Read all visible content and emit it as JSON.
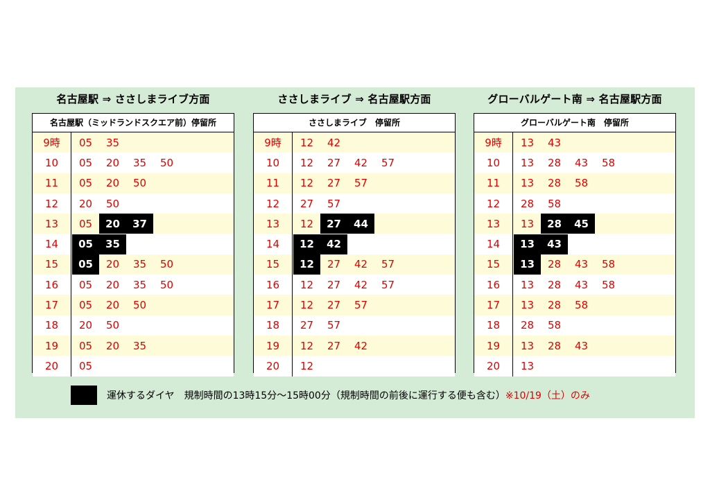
{
  "colors": {
    "background": "#d4ebd6",
    "highlight_row": "#fefbd8",
    "time_text": "#e00000",
    "suspended": "#000000"
  },
  "blocks": [
    {
      "title": "名古屋駅 ⇒ ささしまライブ方面",
      "stop": "名古屋駅（ミッドランドスクエア前）停留所",
      "rows": [
        {
          "hour": "9時",
          "mins": [
            {
              "m": "05",
              "s": false
            },
            {
              "m": "35",
              "s": false
            }
          ]
        },
        {
          "hour": "10",
          "mins": [
            {
              "m": "05",
              "s": false
            },
            {
              "m": "20",
              "s": false
            },
            {
              "m": "35",
              "s": false
            },
            {
              "m": "50",
              "s": false
            }
          ]
        },
        {
          "hour": "11",
          "mins": [
            {
              "m": "05",
              "s": false
            },
            {
              "m": "20",
              "s": false
            },
            {
              "m": "50",
              "s": false
            }
          ]
        },
        {
          "hour": "12",
          "mins": [
            {
              "m": "20",
              "s": false
            },
            {
              "m": "50",
              "s": false
            }
          ]
        },
        {
          "hour": "13",
          "mins": [
            {
              "m": "05",
              "s": false
            },
            {
              "m": "20",
              "s": true
            },
            {
              "m": "37",
              "s": true
            }
          ]
        },
        {
          "hour": "14",
          "mins": [
            {
              "m": "05",
              "s": true
            },
            {
              "m": "35",
              "s": true
            }
          ]
        },
        {
          "hour": "15",
          "mins": [
            {
              "m": "05",
              "s": true
            },
            {
              "m": "20",
              "s": false
            },
            {
              "m": "35",
              "s": false
            },
            {
              "m": "50",
              "s": false
            }
          ]
        },
        {
          "hour": "16",
          "mins": [
            {
              "m": "05",
              "s": false
            },
            {
              "m": "20",
              "s": false
            },
            {
              "m": "35",
              "s": false
            },
            {
              "m": "50",
              "s": false
            }
          ]
        },
        {
          "hour": "17",
          "mins": [
            {
              "m": "05",
              "s": false
            },
            {
              "m": "20",
              "s": false
            },
            {
              "m": "50",
              "s": false
            }
          ]
        },
        {
          "hour": "18",
          "mins": [
            {
              "m": "20",
              "s": false
            },
            {
              "m": "50",
              "s": false
            }
          ]
        },
        {
          "hour": "19",
          "mins": [
            {
              "m": "05",
              "s": false
            },
            {
              "m": "20",
              "s": false
            },
            {
              "m": "35",
              "s": false
            }
          ]
        },
        {
          "hour": "20",
          "mins": [
            {
              "m": "05",
              "s": false
            }
          ]
        }
      ]
    },
    {
      "title": "ささしまライブ ⇒ 名古屋駅方面",
      "stop": "ささしまライブ　停留所",
      "rows": [
        {
          "hour": "9時",
          "mins": [
            {
              "m": "12",
              "s": false
            },
            {
              "m": "42",
              "s": false
            }
          ]
        },
        {
          "hour": "10",
          "mins": [
            {
              "m": "12",
              "s": false
            },
            {
              "m": "27",
              "s": false
            },
            {
              "m": "42",
              "s": false
            },
            {
              "m": "57",
              "s": false
            }
          ]
        },
        {
          "hour": "11",
          "mins": [
            {
              "m": "12",
              "s": false
            },
            {
              "m": "27",
              "s": false
            },
            {
              "m": "57",
              "s": false
            }
          ]
        },
        {
          "hour": "12",
          "mins": [
            {
              "m": "27",
              "s": false
            },
            {
              "m": "57",
              "s": false
            }
          ]
        },
        {
          "hour": "13",
          "mins": [
            {
              "m": "12",
              "s": false
            },
            {
              "m": "27",
              "s": true
            },
            {
              "m": "44",
              "s": true
            }
          ]
        },
        {
          "hour": "14",
          "mins": [
            {
              "m": "12",
              "s": true
            },
            {
              "m": "42",
              "s": true
            }
          ]
        },
        {
          "hour": "15",
          "mins": [
            {
              "m": "12",
              "s": true
            },
            {
              "m": "27",
              "s": false
            },
            {
              "m": "42",
              "s": false
            },
            {
              "m": "57",
              "s": false
            }
          ]
        },
        {
          "hour": "16",
          "mins": [
            {
              "m": "12",
              "s": false
            },
            {
              "m": "27",
              "s": false
            },
            {
              "m": "42",
              "s": false
            },
            {
              "m": "57",
              "s": false
            }
          ]
        },
        {
          "hour": "17",
          "mins": [
            {
              "m": "12",
              "s": false
            },
            {
              "m": "27",
              "s": false
            },
            {
              "m": "57",
              "s": false
            }
          ]
        },
        {
          "hour": "18",
          "mins": [
            {
              "m": "27",
              "s": false
            },
            {
              "m": "57",
              "s": false
            }
          ]
        },
        {
          "hour": "19",
          "mins": [
            {
              "m": "12",
              "s": false
            },
            {
              "m": "27",
              "s": false
            },
            {
              "m": "42",
              "s": false
            }
          ]
        },
        {
          "hour": "20",
          "mins": [
            {
              "m": "12",
              "s": false
            }
          ]
        }
      ]
    },
    {
      "title": "グローバルゲート南 ⇒ 名古屋駅方面",
      "stop": "グローバルゲート南　停留所",
      "rows": [
        {
          "hour": "9時",
          "mins": [
            {
              "m": "13",
              "s": false
            },
            {
              "m": "43",
              "s": false
            }
          ]
        },
        {
          "hour": "10",
          "mins": [
            {
              "m": "13",
              "s": false
            },
            {
              "m": "28",
              "s": false
            },
            {
              "m": "43",
              "s": false
            },
            {
              "m": "58",
              "s": false
            }
          ]
        },
        {
          "hour": "11",
          "mins": [
            {
              "m": "13",
              "s": false
            },
            {
              "m": "28",
              "s": false
            },
            {
              "m": "58",
              "s": false
            }
          ]
        },
        {
          "hour": "12",
          "mins": [
            {
              "m": "28",
              "s": false
            },
            {
              "m": "58",
              "s": false
            }
          ]
        },
        {
          "hour": "13",
          "mins": [
            {
              "m": "13",
              "s": false
            },
            {
              "m": "28",
              "s": true
            },
            {
              "m": "45",
              "s": true
            }
          ]
        },
        {
          "hour": "14",
          "mins": [
            {
              "m": "13",
              "s": true
            },
            {
              "m": "43",
              "s": true
            }
          ]
        },
        {
          "hour": "15",
          "mins": [
            {
              "m": "13",
              "s": true
            },
            {
              "m": "28",
              "s": false
            },
            {
              "m": "43",
              "s": false
            },
            {
              "m": "58",
              "s": false
            }
          ]
        },
        {
          "hour": "16",
          "mins": [
            {
              "m": "13",
              "s": false
            },
            {
              "m": "28",
              "s": false
            },
            {
              "m": "43",
              "s": false
            },
            {
              "m": "58",
              "s": false
            }
          ]
        },
        {
          "hour": "17",
          "mins": [
            {
              "m": "13",
              "s": false
            },
            {
              "m": "28",
              "s": false
            },
            {
              "m": "58",
              "s": false
            }
          ]
        },
        {
          "hour": "18",
          "mins": [
            {
              "m": "28",
              "s": false
            },
            {
              "m": "58",
              "s": false
            }
          ]
        },
        {
          "hour": "19",
          "mins": [
            {
              "m": "13",
              "s": false
            },
            {
              "m": "28",
              "s": false
            },
            {
              "m": "43",
              "s": false
            }
          ]
        },
        {
          "hour": "20",
          "mins": [
            {
              "m": "13",
              "s": false
            }
          ]
        }
      ]
    }
  ],
  "legend": {
    "text": "運休するダイヤ　規制時間の13時15分～15時00分（規制時間の前後に運行する便も含む）",
    "note": "※10/19（土）のみ"
  }
}
